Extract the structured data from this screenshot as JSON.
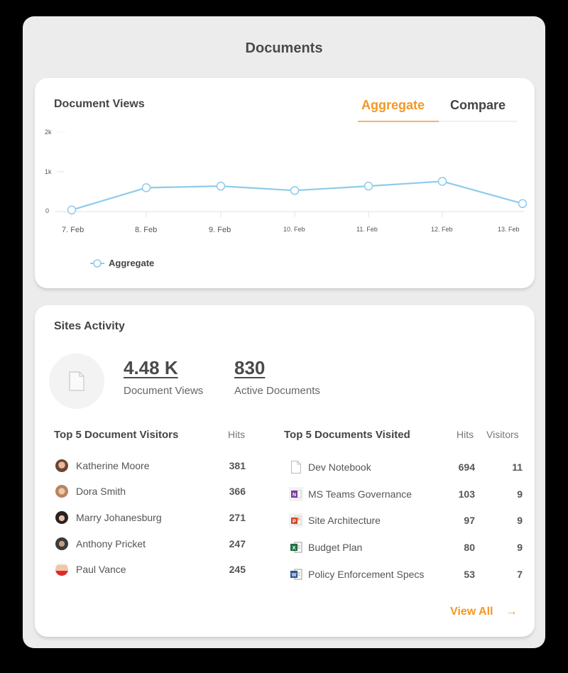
{
  "panel": {
    "title": "Documents"
  },
  "document_views": {
    "title": "Document Views",
    "tabs": [
      {
        "label": "Aggregate",
        "active": true
      },
      {
        "label": "Compare",
        "active": false
      }
    ],
    "legend": "Aggregate",
    "line_color": "#8ecbea",
    "accent_color": "#f29826"
  },
  "chart_data": {
    "type": "line",
    "title": "Document Views",
    "xlabel": "",
    "ylabel": "",
    "categories": [
      "7. Feb",
      "8. Feb",
      "9. Feb",
      "10. Feb",
      "11. Feb",
      "12. Feb",
      "13. Feb"
    ],
    "series": [
      {
        "name": "Aggregate",
        "values": [
          40,
          600,
          640,
          530,
          640,
          760,
          200
        ]
      }
    ],
    "y_ticks": [
      "0",
      "1k",
      "2k"
    ],
    "ylim": [
      0,
      2000
    ],
    "grid": false,
    "legend_position": "bottom-left"
  },
  "sites_activity": {
    "title": "Sites Activity",
    "icon": "document-icon",
    "stats": [
      {
        "value": "4.48 K",
        "label": "Document Views"
      },
      {
        "value": "830",
        "label": "Active Documents"
      }
    ],
    "visitors": {
      "title": "Top 5 Document Visitors",
      "hits_header": "Hits",
      "rows": [
        {
          "name": "Katherine Moore",
          "hits": "381"
        },
        {
          "name": "Dora Smith",
          "hits": "366"
        },
        {
          "name": "Marry Johanesburg",
          "hits": "271"
        },
        {
          "name": "Anthony Pricket",
          "hits": "247"
        },
        {
          "name": "Paul Vance",
          "hits": "245"
        }
      ]
    },
    "documents": {
      "title": "Top 5 Documents Visited",
      "hits_header": "Hits",
      "visitors_header": "Visitors",
      "rows": [
        {
          "name": "Dev Notebook",
          "icon": "generic-file-icon",
          "hits": "694",
          "visitors": "11"
        },
        {
          "name": "MS Teams Governance",
          "icon": "onenote-file-icon",
          "hits": "103",
          "visitors": "9"
        },
        {
          "name": "Site Architecture",
          "icon": "powerpoint-file-icon",
          "hits": "97",
          "visitors": "9"
        },
        {
          "name": "Budget Plan",
          "icon": "excel-file-icon",
          "hits": "80",
          "visitors": "9"
        },
        {
          "name": "Policy Enforcement Specs",
          "icon": "word-file-icon",
          "hits": "53",
          "visitors": "7"
        }
      ]
    },
    "view_all": "View All",
    "view_all_arrow": "→"
  }
}
